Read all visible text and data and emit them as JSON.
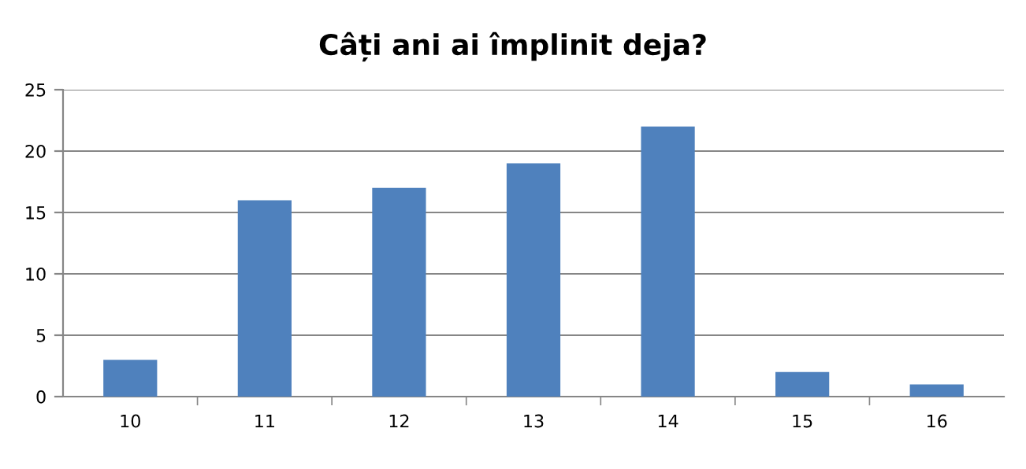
{
  "chart_data": {
    "type": "bar",
    "title": "Câți ani ai împlinit deja?",
    "categories": [
      "10",
      "11",
      "12",
      "13",
      "14",
      "15",
      "16"
    ],
    "values": [
      3,
      16,
      17,
      19,
      22,
      2,
      1
    ],
    "color": "#4f81bd",
    "ylim": [
      0,
      25
    ],
    "yticks": [
      0,
      5,
      10,
      15,
      20,
      25
    ],
    "grid": "y",
    "legend": false
  }
}
